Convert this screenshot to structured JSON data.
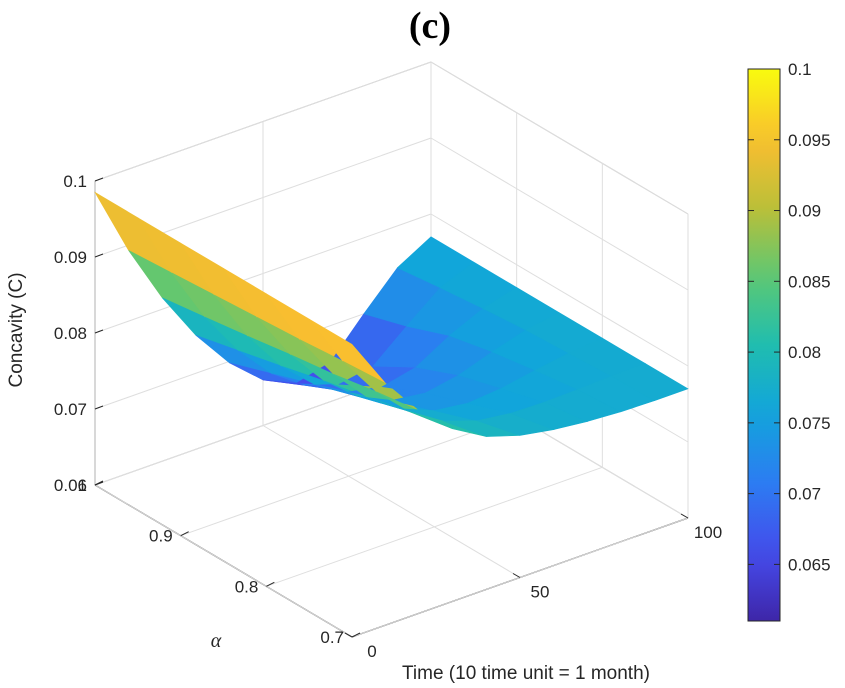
{
  "panel_label": "(c)",
  "chart_data": {
    "type": "surface3d",
    "title": "(c)",
    "xlabel": "Time (10 time unit = 1 month)",
    "ylabel": "α",
    "zlabel": "Concavity (C)",
    "xlim": [
      0,
      100
    ],
    "ylim": [
      0.7,
      1
    ],
    "zlim": [
      0.06,
      0.1
    ],
    "xticks": [
      "0",
      "50",
      "100"
    ],
    "yticks": [
      "0.7",
      "0.8",
      "0.9",
      "1"
    ],
    "zticks": [
      "0.06",
      "0.07",
      "0.08",
      "0.09",
      "0.1"
    ],
    "grid": true,
    "colormap": "parula",
    "colorbar": {
      "range": [
        0.061,
        0.1
      ],
      "ticks": [
        "0.065",
        "0.07",
        "0.075",
        "0.08",
        "0.085",
        "0.09",
        "0.095",
        "0.1"
      ]
    },
    "surface": {
      "description_rows": "Concavity vs time for each alpha",
      "alpha_values": [
        0.7,
        0.75,
        0.8,
        0.85,
        0.9,
        0.95,
        1.0
      ],
      "time_values": [
        0,
        10,
        20,
        30,
        40,
        50,
        60,
        70,
        80,
        90,
        100
      ],
      "z": [
        [
          0.0985,
          0.0918,
          0.0866,
          0.0827,
          0.0801,
          0.0787,
          0.0779,
          0.0774,
          0.0771,
          0.077,
          0.077
        ],
        [
          0.0985,
          0.0914,
          0.0858,
          0.0816,
          0.0788,
          0.0773,
          0.0767,
          0.0766,
          0.0767,
          0.0769,
          0.077
        ],
        [
          0.0985,
          0.0909,
          0.0848,
          0.0802,
          0.0771,
          0.0753,
          0.0747,
          0.0751,
          0.0759,
          0.0766,
          0.077
        ],
        [
          0.0985,
          0.0905,
          0.084,
          0.079,
          0.0754,
          0.0733,
          0.0727,
          0.0735,
          0.075,
          0.0763,
          0.077
        ],
        [
          0.0985,
          0.0901,
          0.0831,
          0.0776,
          0.0736,
          0.0711,
          0.0702,
          0.0712,
          0.0738,
          0.0758,
          0.077
        ],
        [
          0.0985,
          0.0897,
          0.0823,
          0.0763,
          0.0717,
          0.0686,
          0.0672,
          0.068,
          0.0717,
          0.0752,
          0.077
        ],
        [
          0.0985,
          0.0893,
          0.0815,
          0.075,
          0.0698,
          0.066,
          0.064,
          0.0652,
          0.07,
          0.0745,
          0.077
        ]
      ]
    }
  }
}
